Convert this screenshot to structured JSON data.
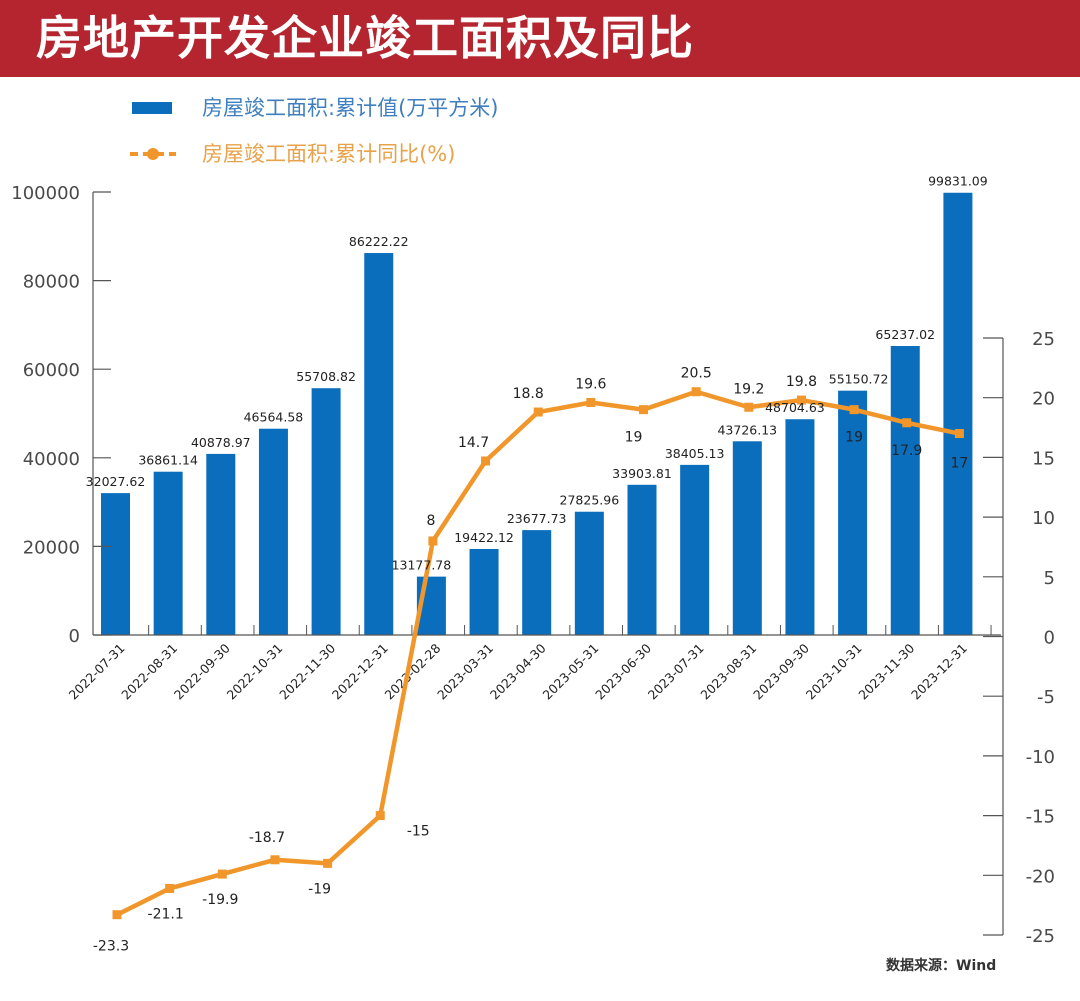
{
  "header": {
    "title": "房地产开发企业竣工面积及同比"
  },
  "legend": {
    "bar_label": "房屋竣工面积:累计值(万平方米)",
    "line_label": "房屋竣工面积:累计同比(%)"
  },
  "source": "数据来源：Wind",
  "colors": {
    "header": "#b5252f",
    "bar": "#0a6ebd",
    "line": "#f0962a",
    "axis": "#555555"
  },
  "chart_data": {
    "type": "bar+line",
    "title": "房地产开发企业竣工面积及同比",
    "categories": [
      "2022-07-31",
      "2022-08-31",
      "2022-09-30",
      "2022-10-31",
      "2022-11-30",
      "2022-12-31",
      "2023-02-28",
      "2023-03-31",
      "2023-04-30",
      "2023-05-31",
      "2023-06-30",
      "2023-07-31",
      "2023-08-31",
      "2023-09-30",
      "2023-10-31",
      "2023-11-30",
      "2023-12-31"
    ],
    "series": [
      {
        "name": "房屋竣工面积:累计值(万平方米)",
        "type": "bar",
        "axis": "left",
        "values": [
          32027.62,
          36861.14,
          40878.97,
          46564.58,
          55708.82,
          86222.22,
          13177.78,
          19422.12,
          23677.73,
          27825.96,
          33903.81,
          38405.13,
          43726.13,
          48704.63,
          55150.72,
          65237.02,
          99831.09
        ],
        "labels": [
          "32027.62",
          "36861.14",
          "40878.97",
          "46564.58",
          "55708.82",
          "86222.22",
          "13177.78",
          "19422.12",
          "23677.73",
          "27825.96",
          "33903.81",
          "38405.13",
          "43726.13",
          "48704.63",
          "55150.72",
          "65237.02",
          "99831.09"
        ]
      },
      {
        "name": "房屋竣工面积:累计同比(%)",
        "type": "line",
        "axis": "right",
        "values": [
          -23.3,
          -21.1,
          -19.9,
          -18.7,
          -19,
          -15,
          8,
          14.7,
          18.8,
          19.6,
          19,
          20.5,
          19.2,
          19.8,
          19,
          17.9,
          17
        ],
        "labels": [
          "-23.3",
          "-21.1",
          "-19.9",
          "-18.7",
          "-19",
          "-15",
          "8",
          "14.7",
          "18.8",
          "19.6",
          "19",
          "20.5",
          "19.2",
          "19.8",
          "19",
          "17.9",
          "17"
        ]
      }
    ],
    "y_left": {
      "ylim": [
        0,
        100000
      ],
      "ticks": [
        0,
        20000,
        40000,
        60000,
        80000,
        100000
      ],
      "tick_labels": [
        "0",
        "20000",
        "40000",
        "60000",
        "80000",
        "100000"
      ]
    },
    "y_right": {
      "ylim": [
        -25,
        25
      ],
      "ticks": [
        -25,
        -20,
        -15,
        -10,
        -5,
        0,
        5,
        10,
        15,
        20,
        25
      ],
      "tick_labels": [
        "-25",
        "-20",
        "-15",
        "-10",
        "-5",
        "0",
        "5",
        "10",
        "15",
        "20",
        "25"
      ]
    },
    "xlabel": "",
    "ylabel": "",
    "grid": false,
    "legend_position": "top-left"
  }
}
